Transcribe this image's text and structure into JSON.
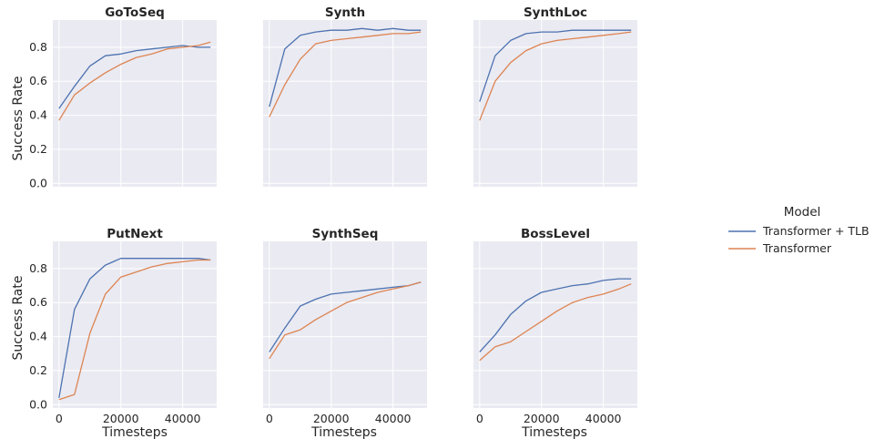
{
  "chart_data": {
    "type": "line",
    "ylabel": "Success Rate",
    "xlabel": "Timesteps",
    "xlim": [
      -2000,
      51000
    ],
    "ylim": [
      -0.02,
      0.96
    ],
    "xticks": [
      0,
      20000,
      40000
    ],
    "xtick_labels": [
      "0",
      "20000",
      "40000"
    ],
    "yticks": [
      0.0,
      0.2,
      0.4,
      0.6,
      0.8
    ],
    "ytick_labels": [
      "0.0",
      "0.2",
      "0.4",
      "0.6",
      "0.8"
    ],
    "grid": true,
    "legend": {
      "title": "Model",
      "placement": "right",
      "entries": [
        "Transformer + TLB",
        "Transformer"
      ],
      "colors": [
        "#4c72b0",
        "#dd8452"
      ]
    },
    "x": [
      0,
      5000,
      10000,
      15000,
      20000,
      25000,
      30000,
      35000,
      40000,
      45000,
      49000
    ],
    "panels": [
      {
        "title": "GoToSeq",
        "series": [
          {
            "name": "Transformer + TLB",
            "values": [
              0.44,
              0.57,
              0.69,
              0.75,
              0.76,
              0.78,
              0.79,
              0.8,
              0.81,
              0.8,
              0.8
            ]
          },
          {
            "name": "Transformer",
            "values": [
              0.37,
              0.52,
              0.59,
              0.65,
              0.7,
              0.74,
              0.76,
              0.79,
              0.8,
              0.81,
              0.83
            ]
          }
        ]
      },
      {
        "title": "Synth",
        "series": [
          {
            "name": "Transformer + TLB",
            "values": [
              0.45,
              0.79,
              0.87,
              0.89,
              0.9,
              0.9,
              0.91,
              0.9,
              0.91,
              0.9,
              0.9
            ]
          },
          {
            "name": "Transformer",
            "values": [
              0.39,
              0.58,
              0.73,
              0.82,
              0.84,
              0.85,
              0.86,
              0.87,
              0.88,
              0.88,
              0.89
            ]
          }
        ]
      },
      {
        "title": "SynthLoc",
        "series": [
          {
            "name": "Transformer + TLB",
            "values": [
              0.48,
              0.75,
              0.84,
              0.88,
              0.89,
              0.89,
              0.9,
              0.9,
              0.9,
              0.9,
              0.9
            ]
          },
          {
            "name": "Transformer",
            "values": [
              0.37,
              0.6,
              0.71,
              0.78,
              0.82,
              0.84,
              0.85,
              0.86,
              0.87,
              0.88,
              0.89
            ]
          }
        ]
      },
      {
        "title": "PutNext",
        "series": [
          {
            "name": "Transformer + TLB",
            "values": [
              0.04,
              0.56,
              0.74,
              0.82,
              0.86,
              0.86,
              0.86,
              0.86,
              0.86,
              0.86,
              0.85
            ]
          },
          {
            "name": "Transformer",
            "values": [
              0.03,
              0.06,
              0.42,
              0.65,
              0.75,
              0.78,
              0.81,
              0.83,
              0.84,
              0.85,
              0.85
            ]
          }
        ]
      },
      {
        "title": "SynthSeq",
        "series": [
          {
            "name": "Transformer + TLB",
            "values": [
              0.31,
              0.45,
              0.58,
              0.62,
              0.65,
              0.66,
              0.67,
              0.68,
              0.69,
              0.7,
              0.72
            ]
          },
          {
            "name": "Transformer",
            "values": [
              0.27,
              0.41,
              0.44,
              0.5,
              0.55,
              0.6,
              0.63,
              0.66,
              0.68,
              0.7,
              0.72
            ]
          }
        ]
      },
      {
        "title": "BossLevel",
        "series": [
          {
            "name": "Transformer + TLB",
            "values": [
              0.31,
              0.41,
              0.53,
              0.61,
              0.66,
              0.68,
              0.7,
              0.71,
              0.73,
              0.74,
              0.74
            ]
          },
          {
            "name": "Transformer",
            "values": [
              0.26,
              0.34,
              0.37,
              0.43,
              0.49,
              0.55,
              0.6,
              0.63,
              0.65,
              0.68,
              0.71
            ]
          }
        ]
      }
    ]
  }
}
